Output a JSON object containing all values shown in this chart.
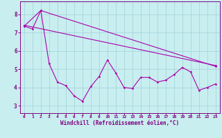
{
  "xlabel": "Windchill (Refroidissement éolien,°C)",
  "background_color": "#c8eef0",
  "grid_color": "#a0d0d8",
  "line_color": "#aa00aa",
  "xlim": [
    -0.5,
    23.5
  ],
  "ylim": [
    2.6,
    8.7
  ],
  "yticks": [
    3,
    4,
    5,
    6,
    7,
    8
  ],
  "xticks": [
    0,
    1,
    2,
    3,
    4,
    5,
    6,
    7,
    8,
    9,
    10,
    11,
    12,
    13,
    14,
    15,
    16,
    17,
    18,
    19,
    20,
    21,
    22,
    23
  ],
  "line1_x": [
    0,
    1,
    2,
    3,
    4,
    5,
    6,
    7,
    8,
    9,
    10,
    11,
    12,
    13,
    14,
    15,
    16,
    17,
    18,
    19,
    20,
    21,
    22,
    23
  ],
  "line1_y": [
    7.35,
    7.2,
    8.2,
    5.3,
    4.3,
    4.1,
    3.55,
    3.25,
    4.05,
    4.6,
    5.5,
    4.8,
    4.0,
    3.95,
    4.55,
    4.55,
    4.3,
    4.4,
    4.7,
    5.1,
    4.85,
    3.85,
    4.0,
    4.2
  ],
  "line2_x": [
    0,
    23
  ],
  "line2_y": [
    7.4,
    5.2
  ],
  "line3_x": [
    0,
    2,
    23
  ],
  "line3_y": [
    7.35,
    8.2,
    5.15
  ]
}
